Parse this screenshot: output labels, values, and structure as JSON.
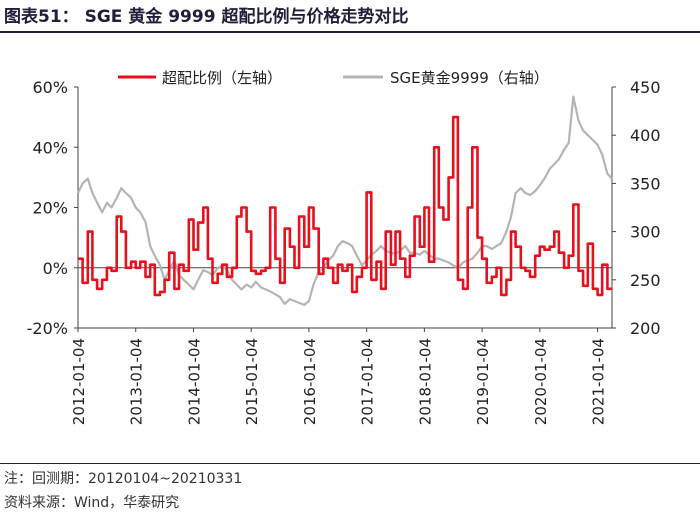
{
  "header": {
    "title": "图表51：  SGE 黄金 9999 超配比例与价格走势对比"
  },
  "footer": {
    "note": "注：回测期：20120104~20210331",
    "source": "资料来源：Wind，华泰研究"
  },
  "colors": {
    "overweight": "#e8101c",
    "gold": "#b4b4b4",
    "text": "#222222",
    "rule": "#1f1f3a"
  },
  "chart_data": {
    "type": "line",
    "title": "SGE 黄金 9999 超配比例与价格走势对比",
    "legend_position": "top",
    "x_ticks": [
      "2012-01-04",
      "2013-01-04",
      "2014-01-04",
      "2015-01-04",
      "2016-01-04",
      "2017-01-04",
      "2018-01-04",
      "2019-01-04",
      "2020-01-04",
      "2021-01-04"
    ],
    "x_range": [
      2012.0,
      2021.25
    ],
    "y_left": {
      "range": [
        -20,
        60
      ],
      "ticks": [
        -20,
        0,
        20,
        40,
        60
      ],
      "tick_labels": [
        "-20%",
        "0%",
        "20%",
        "40%",
        "60%"
      ]
    },
    "y_right": {
      "range": [
        200,
        450
      ],
      "ticks": [
        200,
        250,
        300,
        350,
        400,
        450
      ],
      "tick_labels": [
        "200",
        "250",
        "300",
        "350",
        "400",
        "450"
      ]
    },
    "series": [
      {
        "name": "超配比例（左轴）",
        "axis": "left",
        "step": true,
        "points": [
          [
            2012.0,
            3
          ],
          [
            2012.08,
            -5
          ],
          [
            2012.17,
            12
          ],
          [
            2012.25,
            -4
          ],
          [
            2012.33,
            -7
          ],
          [
            2012.42,
            -4
          ],
          [
            2012.5,
            0
          ],
          [
            2012.58,
            -1
          ],
          [
            2012.67,
            17
          ],
          [
            2012.75,
            12
          ],
          [
            2012.83,
            0
          ],
          [
            2012.92,
            2
          ],
          [
            2013.0,
            0
          ],
          [
            2013.08,
            2
          ],
          [
            2013.17,
            -3
          ],
          [
            2013.25,
            1
          ],
          [
            2013.33,
            -9
          ],
          [
            2013.42,
            -8
          ],
          [
            2013.5,
            -4
          ],
          [
            2013.58,
            5
          ],
          [
            2013.67,
            -7
          ],
          [
            2013.75,
            1
          ],
          [
            2013.83,
            -1
          ],
          [
            2013.92,
            16
          ],
          [
            2014.0,
            6
          ],
          [
            2014.08,
            15
          ],
          [
            2014.17,
            20
          ],
          [
            2014.25,
            3
          ],
          [
            2014.33,
            -5
          ],
          [
            2014.42,
            -2
          ],
          [
            2014.5,
            1
          ],
          [
            2014.58,
            -3
          ],
          [
            2014.67,
            0
          ],
          [
            2014.75,
            17
          ],
          [
            2014.83,
            20
          ],
          [
            2014.92,
            12
          ],
          [
            2015.0,
            -1
          ],
          [
            2015.08,
            -2
          ],
          [
            2015.17,
            -1
          ],
          [
            2015.25,
            0
          ],
          [
            2015.33,
            20
          ],
          [
            2015.42,
            3
          ],
          [
            2015.5,
            -5
          ],
          [
            2015.58,
            13
          ],
          [
            2015.67,
            7
          ],
          [
            2015.75,
            0
          ],
          [
            2015.83,
            17
          ],
          [
            2015.92,
            7
          ],
          [
            2016.0,
            20
          ],
          [
            2016.08,
            13
          ],
          [
            2016.17,
            -2
          ],
          [
            2016.25,
            3
          ],
          [
            2016.33,
            0
          ],
          [
            2016.42,
            -5
          ],
          [
            2016.5,
            1
          ],
          [
            2016.58,
            -1
          ],
          [
            2016.67,
            1
          ],
          [
            2016.75,
            -8
          ],
          [
            2016.83,
            -3
          ],
          [
            2016.92,
            0
          ],
          [
            2017.0,
            25
          ],
          [
            2017.08,
            -4
          ],
          [
            2017.17,
            2
          ],
          [
            2017.25,
            -7
          ],
          [
            2017.33,
            12
          ],
          [
            2017.42,
            1
          ],
          [
            2017.5,
            12
          ],
          [
            2017.58,
            3
          ],
          [
            2017.67,
            -3
          ],
          [
            2017.75,
            4
          ],
          [
            2017.83,
            17
          ],
          [
            2017.92,
            7
          ],
          [
            2018.0,
            20
          ],
          [
            2018.08,
            2
          ],
          [
            2018.17,
            40
          ],
          [
            2018.25,
            20
          ],
          [
            2018.33,
            16
          ],
          [
            2018.42,
            30
          ],
          [
            2018.5,
            50
          ],
          [
            2018.58,
            -4
          ],
          [
            2018.67,
            -7
          ],
          [
            2018.75,
            20
          ],
          [
            2018.83,
            40
          ],
          [
            2018.92,
            10
          ],
          [
            2019.0,
            3
          ],
          [
            2019.08,
            -5
          ],
          [
            2019.17,
            -3
          ],
          [
            2019.25,
            0
          ],
          [
            2019.33,
            -9
          ],
          [
            2019.42,
            -4
          ],
          [
            2019.5,
            12
          ],
          [
            2019.58,
            7
          ],
          [
            2019.67,
            0
          ],
          [
            2019.75,
            -1
          ],
          [
            2019.83,
            -3
          ],
          [
            2019.92,
            4
          ],
          [
            2020.0,
            7
          ],
          [
            2020.08,
            6
          ],
          [
            2020.17,
            7
          ],
          [
            2020.25,
            12
          ],
          [
            2020.33,
            5
          ],
          [
            2020.42,
            0
          ],
          [
            2020.5,
            4
          ],
          [
            2020.58,
            21
          ],
          [
            2020.67,
            -1
          ],
          [
            2020.75,
            -6
          ],
          [
            2020.83,
            8
          ],
          [
            2020.92,
            -7
          ],
          [
            2021.0,
            -9
          ],
          [
            2021.08,
            1
          ],
          [
            2021.17,
            -7
          ],
          [
            2021.25,
            -7
          ]
        ]
      },
      {
        "name": "SGE黄金9999（右轴）",
        "axis": "right",
        "step": false,
        "points": [
          [
            2012.0,
            340
          ],
          [
            2012.08,
            350
          ],
          [
            2012.17,
            355
          ],
          [
            2012.25,
            340
          ],
          [
            2012.33,
            330
          ],
          [
            2012.42,
            320
          ],
          [
            2012.5,
            330
          ],
          [
            2012.58,
            325
          ],
          [
            2012.67,
            335
          ],
          [
            2012.75,
            345
          ],
          [
            2012.83,
            340
          ],
          [
            2012.92,
            335
          ],
          [
            2013.0,
            325
          ],
          [
            2013.08,
            320
          ],
          [
            2013.17,
            310
          ],
          [
            2013.25,
            285
          ],
          [
            2013.33,
            275
          ],
          [
            2013.42,
            265
          ],
          [
            2013.5,
            250
          ],
          [
            2013.58,
            260
          ],
          [
            2013.67,
            270
          ],
          [
            2013.75,
            255
          ],
          [
            2013.83,
            250
          ],
          [
            2013.92,
            245
          ],
          [
            2014.0,
            240
          ],
          [
            2014.08,
            250
          ],
          [
            2014.17,
            260
          ],
          [
            2014.25,
            258
          ],
          [
            2014.33,
            255
          ],
          [
            2014.42,
            262
          ],
          [
            2014.5,
            265
          ],
          [
            2014.58,
            260
          ],
          [
            2014.67,
            250
          ],
          [
            2014.75,
            245
          ],
          [
            2014.83,
            240
          ],
          [
            2014.92,
            245
          ],
          [
            2015.0,
            242
          ],
          [
            2015.08,
            248
          ],
          [
            2015.17,
            242
          ],
          [
            2015.25,
            240
          ],
          [
            2015.33,
            238
          ],
          [
            2015.42,
            235
          ],
          [
            2015.5,
            232
          ],
          [
            2015.58,
            225
          ],
          [
            2015.67,
            230
          ],
          [
            2015.75,
            228
          ],
          [
            2015.83,
            226
          ],
          [
            2015.92,
            224
          ],
          [
            2016.0,
            228
          ],
          [
            2016.08,
            245
          ],
          [
            2016.17,
            258
          ],
          [
            2016.25,
            262
          ],
          [
            2016.33,
            270
          ],
          [
            2016.42,
            275
          ],
          [
            2016.5,
            285
          ],
          [
            2016.58,
            290
          ],
          [
            2016.67,
            288
          ],
          [
            2016.75,
            285
          ],
          [
            2016.83,
            275
          ],
          [
            2016.92,
            265
          ],
          [
            2017.0,
            270
          ],
          [
            2017.08,
            276
          ],
          [
            2017.17,
            280
          ],
          [
            2017.25,
            285
          ],
          [
            2017.33,
            280
          ],
          [
            2017.42,
            278
          ],
          [
            2017.5,
            277
          ],
          [
            2017.58,
            280
          ],
          [
            2017.67,
            285
          ],
          [
            2017.75,
            278
          ],
          [
            2017.83,
            278
          ],
          [
            2017.92,
            276
          ],
          [
            2018.0,
            280
          ],
          [
            2018.08,
            276
          ],
          [
            2018.17,
            272
          ],
          [
            2018.25,
            272
          ],
          [
            2018.33,
            270
          ],
          [
            2018.42,
            268
          ],
          [
            2018.5,
            265
          ],
          [
            2018.58,
            262
          ],
          [
            2018.67,
            268
          ],
          [
            2018.75,
            270
          ],
          [
            2018.83,
            272
          ],
          [
            2018.92,
            278
          ],
          [
            2019.0,
            285
          ],
          [
            2019.08,
            285
          ],
          [
            2019.17,
            282
          ],
          [
            2019.25,
            285
          ],
          [
            2019.33,
            288
          ],
          [
            2019.42,
            300
          ],
          [
            2019.5,
            315
          ],
          [
            2019.58,
            340
          ],
          [
            2019.67,
            345
          ],
          [
            2019.75,
            340
          ],
          [
            2019.83,
            338
          ],
          [
            2019.92,
            342
          ],
          [
            2020.0,
            348
          ],
          [
            2020.08,
            355
          ],
          [
            2020.17,
            365
          ],
          [
            2020.25,
            370
          ],
          [
            2020.33,
            375
          ],
          [
            2020.42,
            385
          ],
          [
            2020.5,
            392
          ],
          [
            2020.58,
            440
          ],
          [
            2020.67,
            415
          ],
          [
            2020.75,
            405
          ],
          [
            2020.83,
            400
          ],
          [
            2020.92,
            395
          ],
          [
            2021.0,
            390
          ],
          [
            2021.08,
            380
          ],
          [
            2021.17,
            360
          ],
          [
            2021.25,
            355
          ]
        ]
      }
    ]
  }
}
